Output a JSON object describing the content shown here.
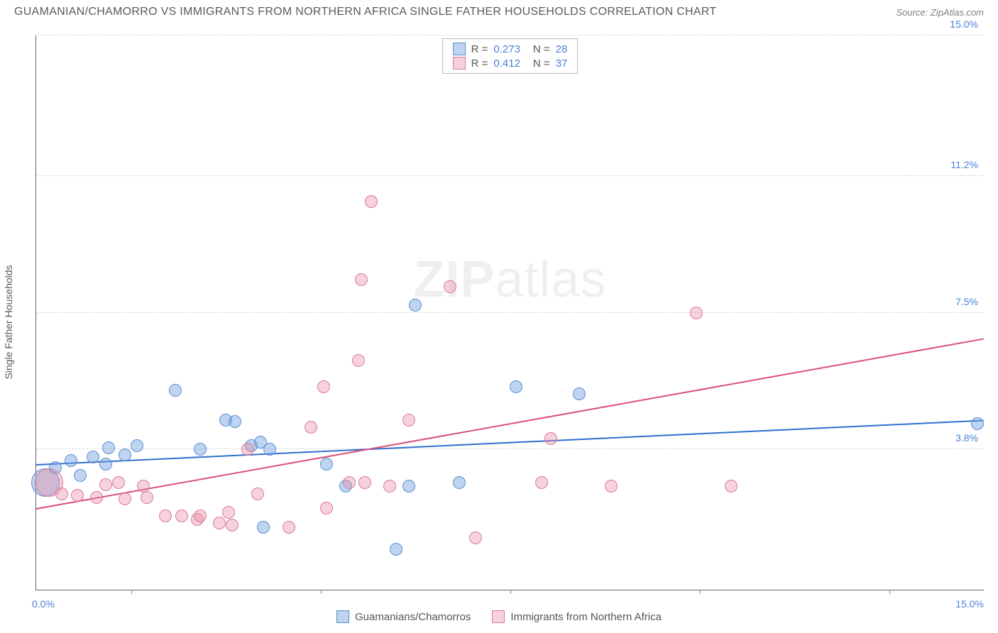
{
  "title": "GUAMANIAN/CHAMORRO VS IMMIGRANTS FROM NORTHERN AFRICA SINGLE FATHER HOUSEHOLDS CORRELATION CHART",
  "source": "Source: ZipAtlas.com",
  "ylabel": "Single Father Households",
  "watermark_bold": "ZIP",
  "watermark_light": "atlas",
  "chart": {
    "type": "scatter-with-regression",
    "xlim": [
      0,
      15
    ],
    "ylim": [
      0,
      15
    ],
    "x_axis_labels": [
      {
        "pos": 0,
        "text": "0.0%"
      },
      {
        "pos": 15,
        "text": "15.0%"
      }
    ],
    "y_gridlines": [
      {
        "v": 3.8,
        "label": "3.8%"
      },
      {
        "v": 7.5,
        "label": "7.5%"
      },
      {
        "v": 11.2,
        "label": "11.2%"
      },
      {
        "v": 15.0,
        "label": "15.0%"
      }
    ],
    "x_ticks": [
      1.5,
      4.5,
      7.5,
      10.5,
      13.5
    ],
    "background_color": "#ffffff",
    "grid_color": "#d8d8d8",
    "tick_label_color": "#4a7fd8",
    "series": [
      {
        "id": "guamanians",
        "label": "Guamanians/Chamorros",
        "fill": "rgba(110,160,225,0.45)",
        "stroke": "#5a8fd0",
        "line_color": "#2f6fd0",
        "marker_radius": 9,
        "R": "0.273",
        "N": "28",
        "trend": {
          "x1": 0,
          "y1": 3.4,
          "x2": 15,
          "y2": 4.6
        },
        "points": [
          {
            "x": 0.15,
            "y": 2.9,
            "r": 20
          },
          {
            "x": 0.3,
            "y": 3.3
          },
          {
            "x": 0.55,
            "y": 3.5
          },
          {
            "x": 0.7,
            "y": 3.1
          },
          {
            "x": 0.9,
            "y": 3.6
          },
          {
            "x": 1.1,
            "y": 3.4
          },
          {
            "x": 1.15,
            "y": 3.85
          },
          {
            "x": 1.4,
            "y": 3.65
          },
          {
            "x": 1.6,
            "y": 3.9
          },
          {
            "x": 2.2,
            "y": 5.4
          },
          {
            "x": 2.6,
            "y": 3.8
          },
          {
            "x": 3.0,
            "y": 4.6
          },
          {
            "x": 3.15,
            "y": 4.55
          },
          {
            "x": 3.4,
            "y": 3.9
          },
          {
            "x": 3.55,
            "y": 4.0
          },
          {
            "x": 3.6,
            "y": 1.7
          },
          {
            "x": 3.7,
            "y": 3.8
          },
          {
            "x": 4.6,
            "y": 3.4
          },
          {
            "x": 4.9,
            "y": 2.8
          },
          {
            "x": 5.7,
            "y": 1.1
          },
          {
            "x": 5.9,
            "y": 2.8
          },
          {
            "x": 6.0,
            "y": 7.7
          },
          {
            "x": 6.7,
            "y": 2.9
          },
          {
            "x": 7.6,
            "y": 5.5
          },
          {
            "x": 8.6,
            "y": 5.3
          },
          {
            "x": 14.9,
            "y": 4.5
          }
        ]
      },
      {
        "id": "northern-africa",
        "label": "Immigrants from Northern Africa",
        "fill": "rgba(235,140,165,0.40)",
        "stroke": "#d77c95",
        "line_color": "#d94f7a",
        "marker_radius": 9,
        "R": "0.412",
        "N": "37",
        "trend": {
          "x1": 0,
          "y1": 2.2,
          "x2": 15,
          "y2": 6.8
        },
        "points": [
          {
            "x": 0.2,
            "y": 2.9,
            "r": 20
          },
          {
            "x": 0.4,
            "y": 2.6
          },
          {
            "x": 0.65,
            "y": 2.55
          },
          {
            "x": 0.95,
            "y": 2.5
          },
          {
            "x": 1.1,
            "y": 2.85
          },
          {
            "x": 1.3,
            "y": 2.9
          },
          {
            "x": 1.4,
            "y": 2.45
          },
          {
            "x": 1.7,
            "y": 2.8
          },
          {
            "x": 1.75,
            "y": 2.5
          },
          {
            "x": 2.05,
            "y": 2.0
          },
          {
            "x": 2.3,
            "y": 2.0
          },
          {
            "x": 2.55,
            "y": 1.9
          },
          {
            "x": 2.6,
            "y": 2.0
          },
          {
            "x": 2.9,
            "y": 1.8
          },
          {
            "x": 3.05,
            "y": 2.1
          },
          {
            "x": 3.1,
            "y": 1.75
          },
          {
            "x": 3.35,
            "y": 3.8
          },
          {
            "x": 3.5,
            "y": 2.6
          },
          {
            "x": 4.0,
            "y": 1.7
          },
          {
            "x": 4.35,
            "y": 4.4
          },
          {
            "x": 4.55,
            "y": 5.5
          },
          {
            "x": 4.6,
            "y": 2.2
          },
          {
            "x": 4.95,
            "y": 2.9
          },
          {
            "x": 5.1,
            "y": 6.2
          },
          {
            "x": 5.15,
            "y": 8.4
          },
          {
            "x": 5.2,
            "y": 2.9
          },
          {
            "x": 5.3,
            "y": 10.5
          },
          {
            "x": 5.6,
            "y": 2.8
          },
          {
            "x": 5.9,
            "y": 4.6
          },
          {
            "x": 6.55,
            "y": 8.2
          },
          {
            "x": 6.95,
            "y": 1.4
          },
          {
            "x": 8.0,
            "y": 2.9
          },
          {
            "x": 8.15,
            "y": 4.1
          },
          {
            "x": 9.1,
            "y": 2.8
          },
          {
            "x": 10.45,
            "y": 7.5
          },
          {
            "x": 11.0,
            "y": 2.8
          }
        ]
      }
    ]
  }
}
